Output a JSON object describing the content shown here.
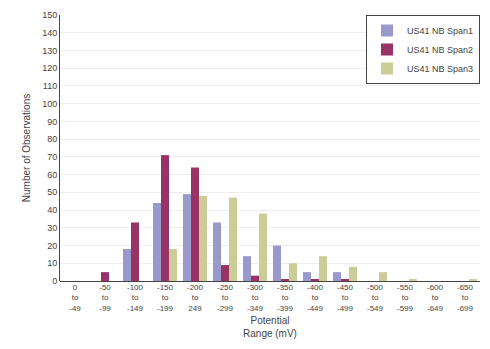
{
  "chart_data": {
    "type": "bar",
    "categories": [
      "0\nto\n-49",
      "-50\nto\n-99",
      "-100\nto\n-149",
      "-150\nto\n-199",
      "-200\nto\n249",
      "-250\nto\n-299",
      "-300\nto\n-349",
      "-350\nto\n-399",
      "-400\nto\n-449",
      "-450\nto\n-499",
      "-500\nto\n-549",
      "-550\nto\n-599",
      "-600\nto\n-649",
      "-650\nto\n-699"
    ],
    "series": [
      {
        "name": "US41 NB Span1",
        "color": "#9999cc",
        "values": [
          0,
          0,
          18,
          44,
          49,
          33,
          14,
          20,
          5,
          5,
          0,
          0,
          0,
          0
        ]
      },
      {
        "name": "US41 NB Span2",
        "color": "#993366",
        "values": [
          0,
          5,
          33,
          71,
          64,
          9,
          3,
          1,
          1,
          1,
          0,
          0,
          0,
          0
        ]
      },
      {
        "name": "US41 NB Span3",
        "color": "#cccc99",
        "values": [
          0,
          0,
          0,
          18,
          48,
          47,
          38,
          10,
          14,
          8,
          5,
          1,
          0,
          1
        ]
      }
    ],
    "xlabel": "Potential\nRange (mV)",
    "ylabel": "Number of Observations",
    "ylim": [
      0,
      150
    ],
    "yticks": [
      0,
      10,
      20,
      30,
      40,
      50,
      60,
      70,
      80,
      90,
      100,
      110,
      120,
      130,
      140,
      150
    ],
    "grid": true,
    "legend": "upper right"
  }
}
